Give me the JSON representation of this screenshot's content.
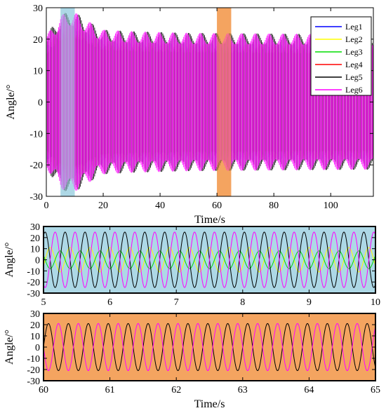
{
  "chart_data": [
    {
      "type": "line",
      "panel": "overview",
      "xlabel": "Time/s",
      "ylabel": "Angle/°",
      "xlim": [
        0,
        115
      ],
      "ylim": [
        -30,
        30
      ],
      "xticks": [
        "0",
        "20",
        "40",
        "60",
        "80",
        "100"
      ],
      "yticks": [
        "30",
        "20",
        "10",
        "0",
        "-10",
        "-20",
        "-30"
      ],
      "legend_position": "top-right",
      "grid": false,
      "series": [
        {
          "name": "Leg1",
          "color": "#0000ff"
        },
        {
          "name": "Leg2",
          "color": "#ffff00"
        },
        {
          "name": "Leg3",
          "color": "#00dd00"
        },
        {
          "name": "Leg4",
          "color": "#ff0000"
        },
        {
          "name": "Leg5",
          "color": "#000000"
        },
        {
          "name": "Leg6",
          "color": "#ff00ff"
        }
      ],
      "envelope": {
        "t": [
          0,
          2,
          5,
          8,
          10,
          13,
          16,
          20,
          30,
          50,
          115
        ],
        "amplitude": [
          21,
          24,
          27.5,
          29,
          28.5,
          27,
          25,
          23,
          22.5,
          22,
          21.5
        ]
      },
      "highlights": [
        {
          "x": [
            5,
            10
          ],
          "color": "#add8e6"
        },
        {
          "x": [
            60,
            65
          ],
          "color": "#f4a460"
        }
      ]
    },
    {
      "type": "line",
      "panel": "zoom 5-10 s",
      "xlim": [
        5,
        10
      ],
      "ylim": [
        -30,
        30
      ],
      "ylabel": "Angle/°",
      "xticks": [
        "5",
        "6",
        "7",
        "8",
        "9",
        "10"
      ],
      "yticks": [
        "30",
        "20",
        "10",
        "0",
        "-10",
        "-20",
        "-30"
      ],
      "background": "#add8e6",
      "period_s": 0.3,
      "series": [
        {
          "legend": "Leg2",
          "color": "#ffff00",
          "amplitude": 11,
          "phase_deg": 90
        },
        {
          "legend": "Leg3",
          "color": "#00dd00",
          "amplitude": 8,
          "phase_deg": -90
        },
        {
          "legend": "Leg5",
          "color": "#000000",
          "amplitude": 25,
          "phase_deg": 180
        },
        {
          "legend": "Leg6",
          "color": "#ff00ff",
          "amplitude": 25,
          "phase_deg": 0
        }
      ]
    },
    {
      "type": "line",
      "panel": "zoom 60-65 s",
      "xlim": [
        60,
        65
      ],
      "ylim": [
        -30,
        30
      ],
      "xlabel": "Time/s",
      "ylabel": "Angle/°",
      "xticks": [
        "60",
        "61",
        "62",
        "63",
        "64",
        "65"
      ],
      "yticks": [
        "30",
        "20",
        "10",
        "0",
        "-10",
        "-20",
        "-30"
      ],
      "background": "#f4a460",
      "period_s": 0.3,
      "series": [
        {
          "legend": "Leg5",
          "color": "#000000",
          "amplitude": 21,
          "phase_deg": 0
        },
        {
          "legend": "Leg6",
          "color": "#ff00ff",
          "amplitude": 21,
          "phase_deg": 180
        }
      ]
    }
  ]
}
